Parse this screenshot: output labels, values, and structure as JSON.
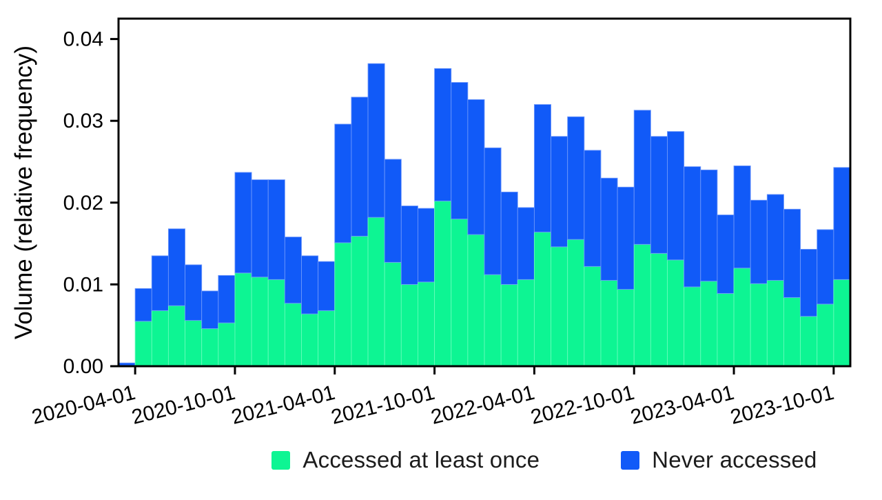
{
  "figure_bg": "#ffffff",
  "axis_color": "#000000",
  "tick_text_color": "#000000",
  "chart_data": {
    "type": "bar",
    "stacked": true,
    "title": "",
    "xlabel": "",
    "ylabel": "Volume (relative frequency)",
    "grid": false,
    "legend_position": "bottom",
    "ylim": [
      0,
      0.0425
    ],
    "yticks": {
      "values": [
        0.0,
        0.01,
        0.02,
        0.03,
        0.04
      ],
      "labels": [
        "0.00",
        "0.01",
        "0.02",
        "0.03",
        "0.04"
      ]
    },
    "categories": [
      "2020-03",
      "2020-04",
      "2020-05",
      "2020-06",
      "2020-07",
      "2020-08",
      "2020-09",
      "2020-10",
      "2020-11",
      "2020-12",
      "2021-01",
      "2021-02",
      "2021-03",
      "2021-04",
      "2021-05",
      "2021-06",
      "2021-07",
      "2021-08",
      "2021-09",
      "2021-10",
      "2021-11",
      "2021-12",
      "2022-01",
      "2022-02",
      "2022-03",
      "2022-04",
      "2022-05",
      "2022-06",
      "2022-07",
      "2022-08",
      "2022-09",
      "2022-10",
      "2022-11",
      "2022-12",
      "2023-01",
      "2023-02",
      "2023-03",
      "2023-04",
      "2023-05",
      "2023-06",
      "2023-07",
      "2023-08",
      "2023-09",
      "2023-10"
    ],
    "xticks": {
      "labels": [
        "2020-04-01",
        "2020-10-01",
        "2021-04-01",
        "2021-10-01",
        "2022-04-01",
        "2022-10-01",
        "2023-04-01",
        "2023-10-01"
      ],
      "bar_index": [
        1,
        7,
        13,
        19,
        25,
        31,
        37,
        43
      ],
      "rotation_deg": -14
    },
    "series": [
      {
        "name": "Accessed at least once",
        "color": "#0df593",
        "edge_color": "#66fcba",
        "values": [
          0.0001,
          0.0055,
          0.0068,
          0.0074,
          0.0056,
          0.0046,
          0.0053,
          0.0114,
          0.0109,
          0.0106,
          0.0077,
          0.0064,
          0.0068,
          0.0151,
          0.0159,
          0.0182,
          0.0127,
          0.01,
          0.0103,
          0.0202,
          0.018,
          0.0161,
          0.0112,
          0.01,
          0.0106,
          0.0164,
          0.0146,
          0.0155,
          0.0122,
          0.0105,
          0.0094,
          0.0149,
          0.0138,
          0.013,
          0.0097,
          0.0104,
          0.0089,
          0.012,
          0.0101,
          0.0105,
          0.0084,
          0.0061,
          0.0076,
          0.0106
        ]
      },
      {
        "name": "Never accessed",
        "color": "#115af8",
        "edge_color": "#6d97fb",
        "values": [
          0.0003,
          0.004,
          0.0067,
          0.0094,
          0.0068,
          0.0046,
          0.0058,
          0.0123,
          0.0119,
          0.0122,
          0.0081,
          0.0071,
          0.006,
          0.0145,
          0.017,
          0.0188,
          0.0126,
          0.0096,
          0.009,
          0.0162,
          0.0167,
          0.0165,
          0.0155,
          0.0113,
          0.0088,
          0.0156,
          0.0135,
          0.015,
          0.0142,
          0.0125,
          0.0125,
          0.0164,
          0.0143,
          0.0157,
          0.0147,
          0.0136,
          0.0096,
          0.0125,
          0.0102,
          0.0105,
          0.0108,
          0.0082,
          0.0091,
          0.0137
        ]
      }
    ]
  }
}
